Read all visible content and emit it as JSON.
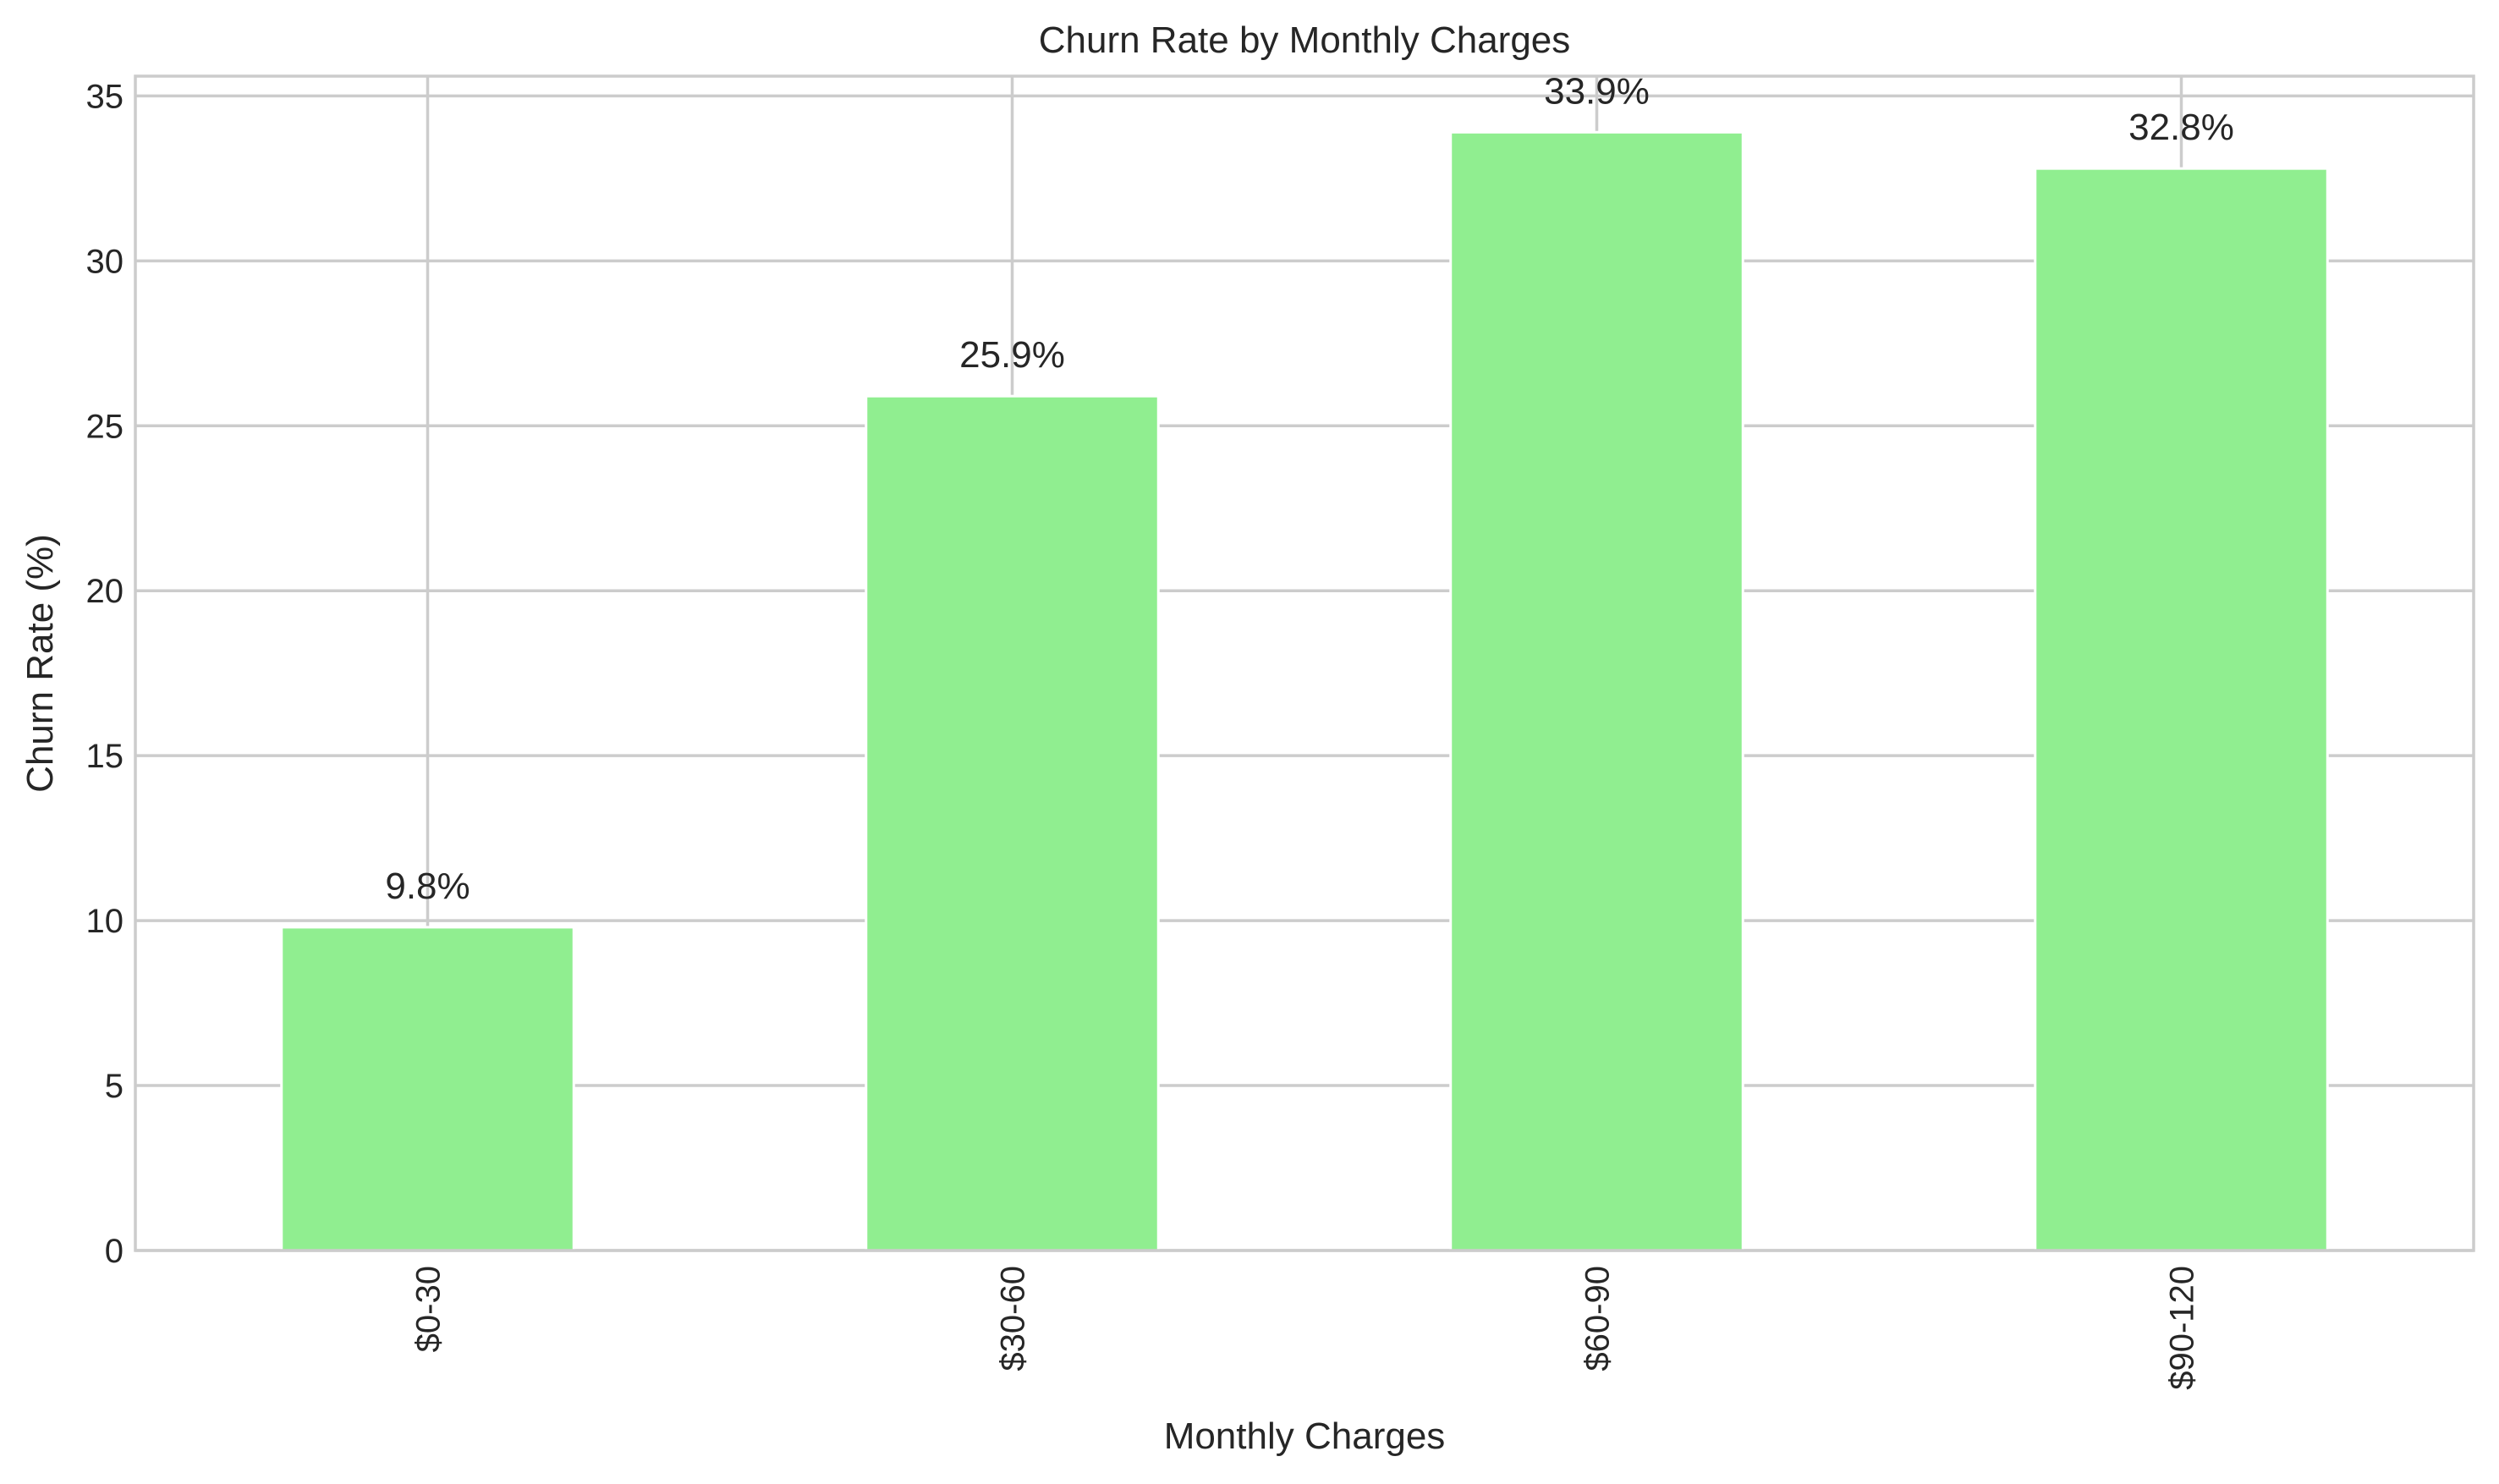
{
  "colors": {
    "bar": "#90ee90",
    "grid": "#cccccc",
    "text": "#262626",
    "background": "#ffffff"
  },
  "chart_data": {
    "type": "bar",
    "title": "Churn Rate by Monthly Charges",
    "xlabel": "Monthly Charges",
    "ylabel": "Churn Rate (%)",
    "categories": [
      "$0-30",
      "$30-60",
      "$60-90",
      "$90-120"
    ],
    "values": [
      9.8,
      25.9,
      33.9,
      32.8
    ],
    "data_labels": [
      "9.8%",
      "25.9%",
      "33.9%",
      "32.8%"
    ],
    "ylim": [
      0,
      35.6
    ],
    "yticks": [
      0,
      5,
      10,
      15,
      20,
      25,
      30,
      35
    ],
    "grid": true,
    "legend": "none"
  }
}
